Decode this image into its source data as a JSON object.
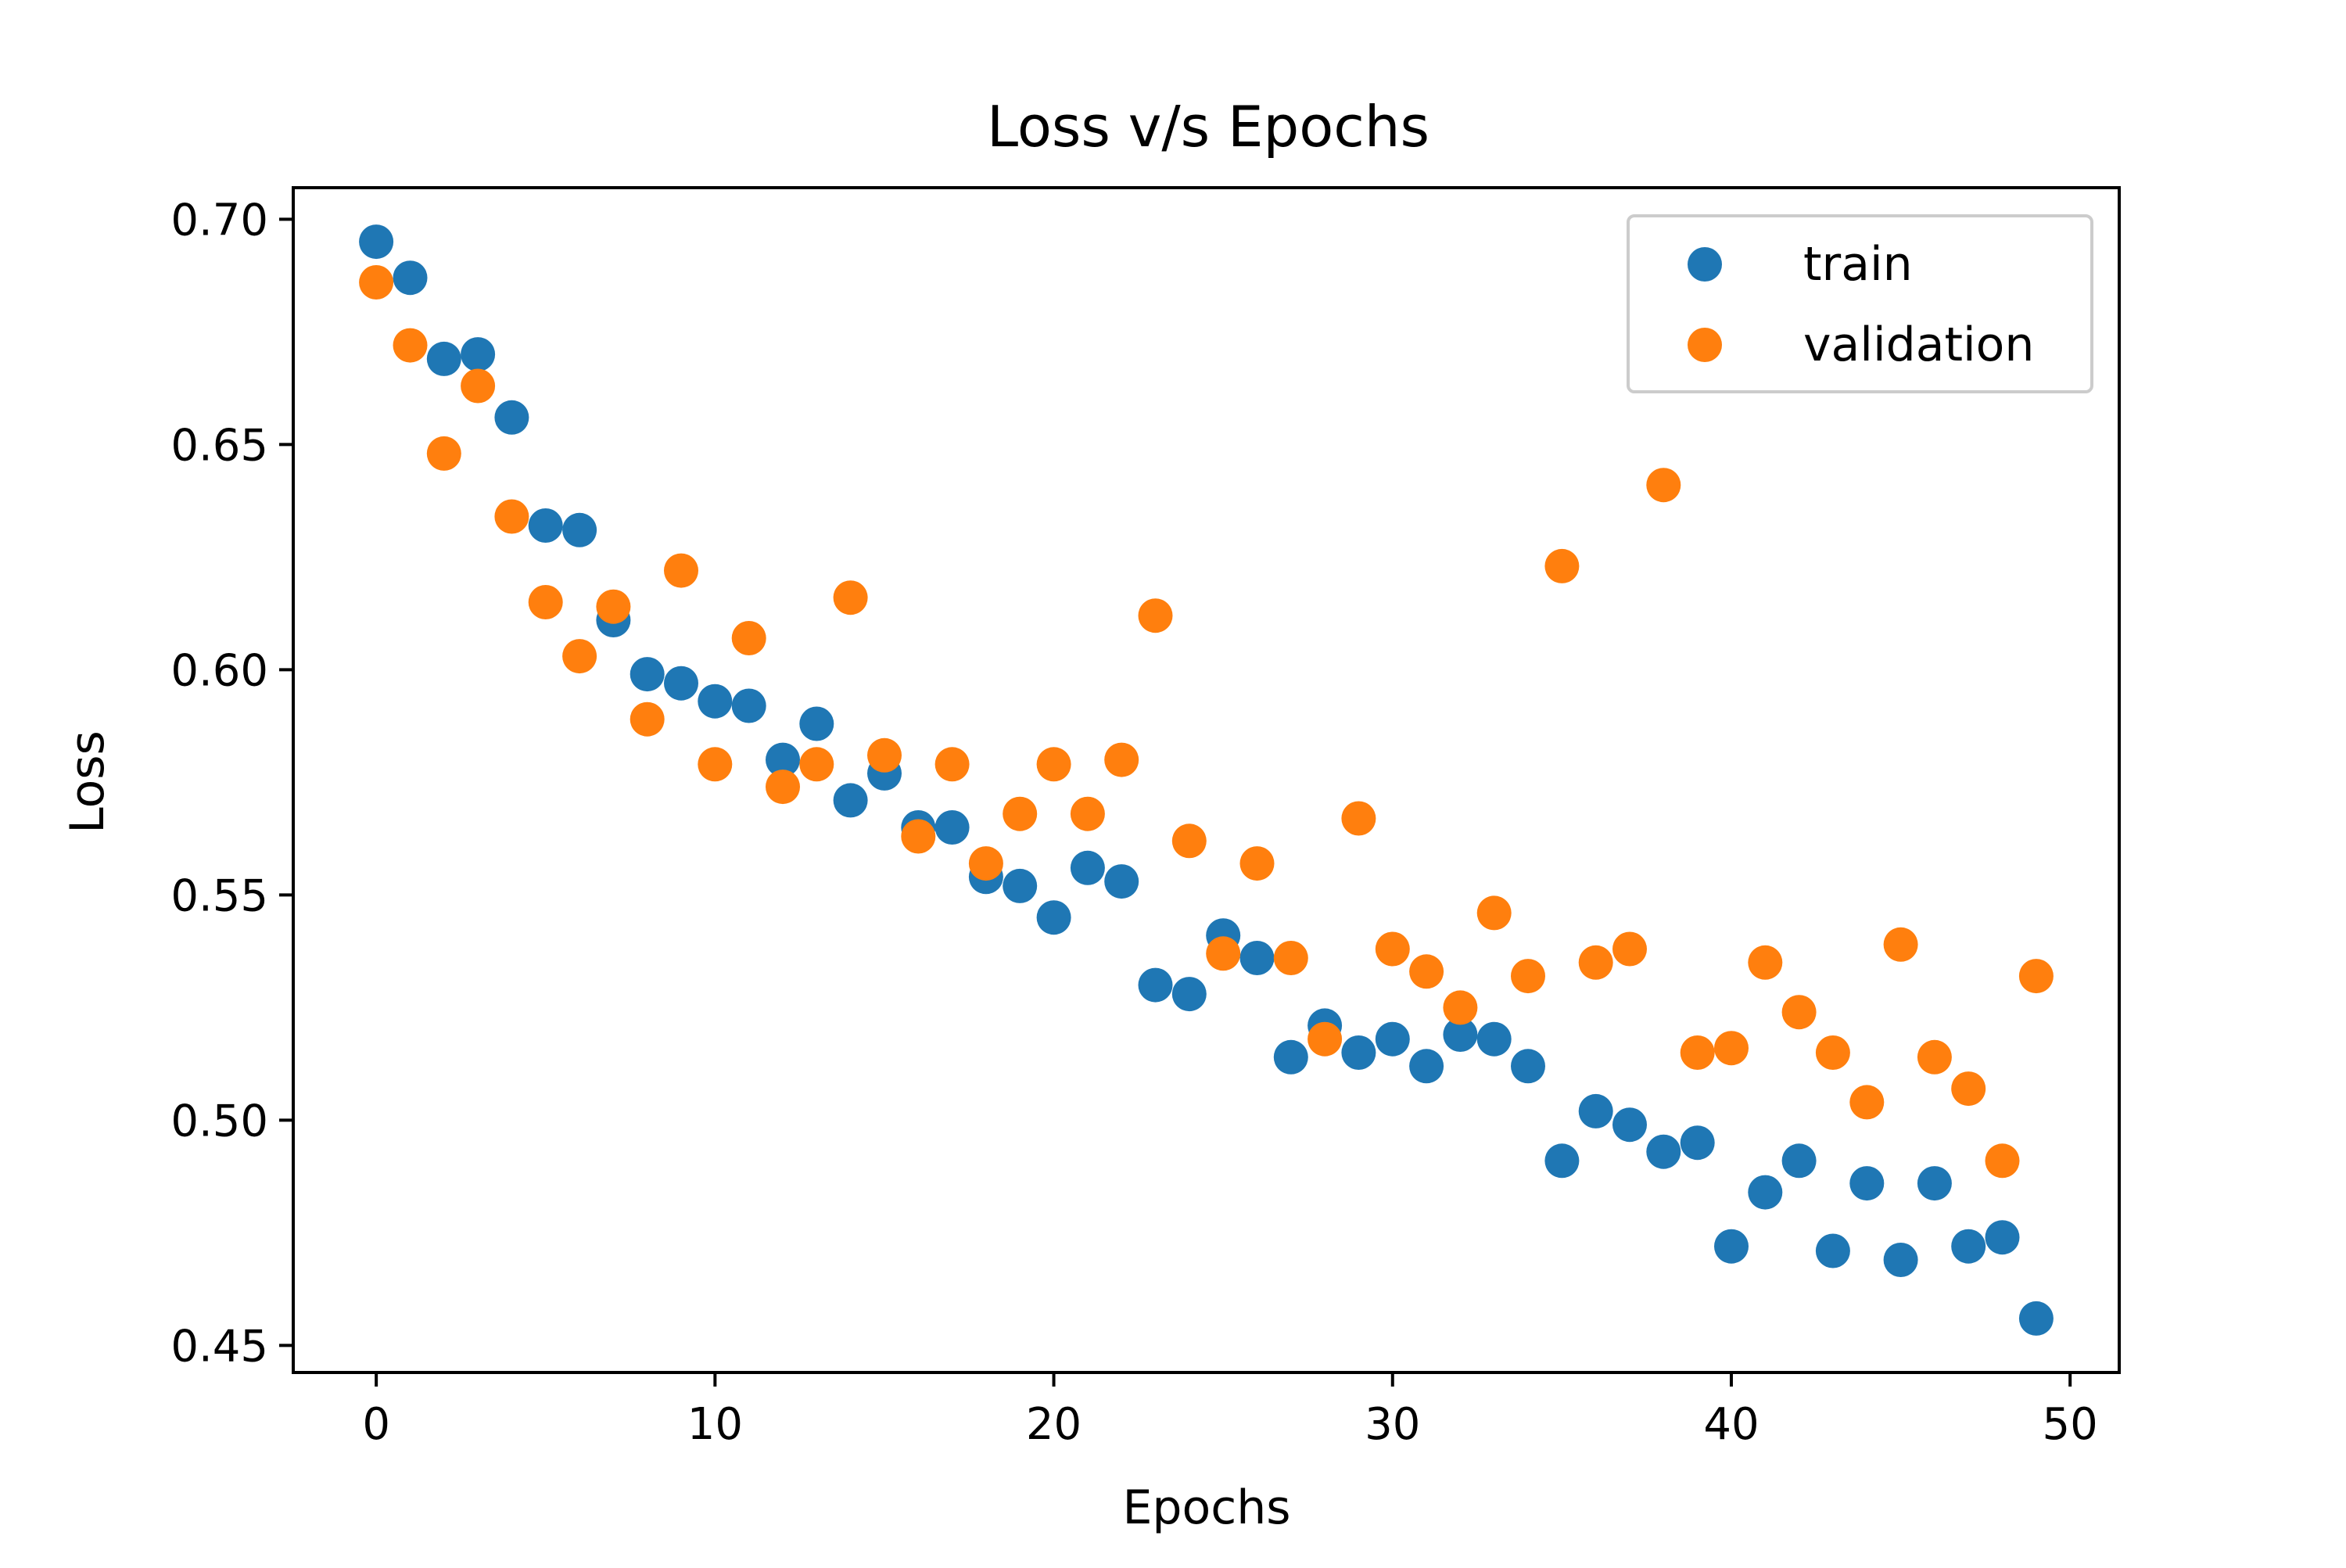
{
  "chart_data": {
    "type": "scatter",
    "title": "Loss v/s Epochs",
    "xlabel": "Epochs",
    "ylabel": "Loss",
    "xlim": [
      -2.45,
      51.45
    ],
    "ylim": [
      0.444,
      0.707
    ],
    "xticks": [
      0,
      10,
      20,
      30,
      40,
      50
    ],
    "xtick_labels": [
      "0",
      "10",
      "20",
      "30",
      "40",
      "50"
    ],
    "yticks": [
      0.45,
      0.5,
      0.55,
      0.6,
      0.65,
      0.7
    ],
    "ytick_labels": [
      "0.45",
      "0.50",
      "0.55",
      "0.60",
      "0.65",
      "0.70"
    ],
    "grid": false,
    "legend_position": "top-right",
    "series": [
      {
        "name": "train",
        "color": "#1f77b4",
        "x": [
          0,
          1,
          2,
          3,
          4,
          5,
          6,
          7,
          8,
          9,
          10,
          11,
          12,
          13,
          14,
          15,
          16,
          17,
          18,
          19,
          20,
          21,
          22,
          23,
          24,
          25,
          26,
          27,
          28,
          29,
          30,
          31,
          32,
          33,
          34,
          35,
          36,
          37,
          38,
          39,
          40,
          41,
          42,
          43,
          44,
          45,
          46,
          47,
          48,
          49
        ],
        "y": [
          0.695,
          0.687,
          0.669,
          0.67,
          0.656,
          0.632,
          0.631,
          0.611,
          0.599,
          0.597,
          0.593,
          0.592,
          0.58,
          0.588,
          0.571,
          0.577,
          0.565,
          0.565,
          0.554,
          0.552,
          0.545,
          0.556,
          0.553,
          0.53,
          0.528,
          0.541,
          0.536,
          0.514,
          0.521,
          0.515,
          0.518,
          0.512,
          0.519,
          0.518,
          0.512,
          0.491,
          0.502,
          0.499,
          0.493,
          0.495,
          0.472,
          0.484,
          0.491,
          0.471,
          0.486,
          0.469,
          0.486,
          0.472,
          0.474,
          0.456
        ]
      },
      {
        "name": "validation",
        "color": "#ff7f0e",
        "x": [
          0,
          1,
          2,
          3,
          4,
          5,
          6,
          7,
          8,
          9,
          10,
          11,
          12,
          13,
          14,
          15,
          16,
          17,
          18,
          19,
          20,
          21,
          22,
          23,
          24,
          25,
          26,
          27,
          28,
          29,
          30,
          31,
          32,
          33,
          34,
          35,
          36,
          37,
          38,
          39,
          40,
          41,
          42,
          43,
          44,
          45,
          46,
          47,
          48,
          49
        ],
        "y": [
          0.686,
          0.672,
          0.648,
          0.663,
          0.634,
          0.615,
          0.603,
          0.614,
          0.589,
          0.622,
          0.579,
          0.607,
          0.574,
          0.579,
          0.616,
          0.581,
          0.563,
          0.579,
          0.557,
          0.568,
          0.579,
          0.568,
          0.58,
          0.612,
          0.562,
          0.537,
          0.557,
          0.536,
          0.518,
          0.567,
          0.538,
          0.533,
          0.525,
          0.546,
          0.532,
          0.623,
          0.535,
          0.538,
          0.641,
          0.515,
          0.516,
          0.535,
          0.524,
          0.515,
          0.504,
          0.539,
          0.514,
          0.507,
          0.491,
          0.532
        ]
      }
    ]
  }
}
